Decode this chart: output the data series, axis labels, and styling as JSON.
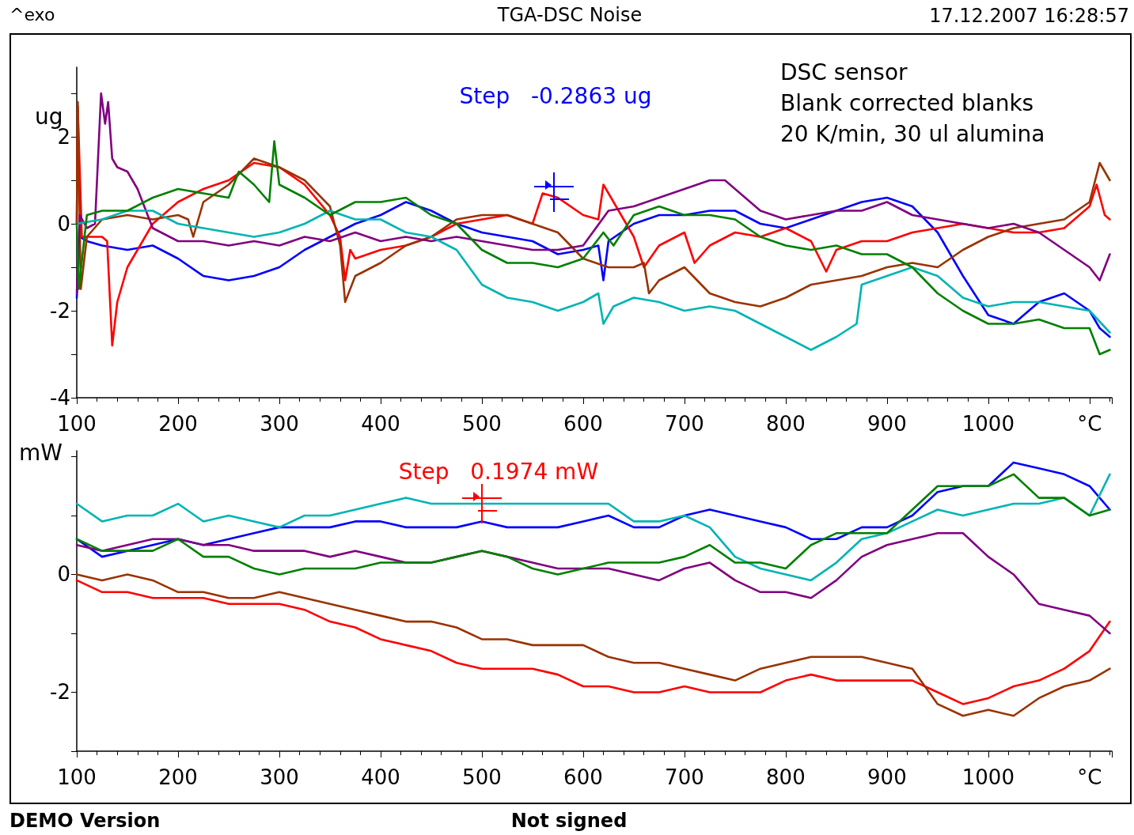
{
  "chart_data": [
    {
      "type": "line",
      "title": "TGA-DSC Noise",
      "ylabel": "ug",
      "annotations": [
        "^exo",
        "17.12.2007 16:28:57",
        "DSC sensor\nBlank corrected blanks\n20 K/min, 30 ul alumina",
        "Step   -0.2863 ug"
      ],
      "xlim": [
        100,
        1122
      ],
      "xticks": [
        100,
        200,
        300,
        400,
        500,
        600,
        700,
        800,
        900,
        1000,
        {
          "value": 1100,
          "label": "°C"
        }
      ],
      "ylim": [
        -4,
        3.6
      ],
      "yticks": [
        -4,
        {
          "value": -3,
          "label": null
        },
        -2,
        {
          "value": -1,
          "label": null
        },
        0,
        {
          "value": 1,
          "label": null
        },
        2,
        {
          "value": 3,
          "label": null
        }
      ],
      "series": [
        {
          "color": "#0000ff",
          "x": [
            100,
            103,
            110,
            125,
            150,
            175,
            200,
            225,
            250,
            275,
            300,
            325,
            350,
            375,
            400,
            425,
            450,
            475,
            500,
            525,
            550,
            575,
            600,
            615,
            620,
            625,
            650,
            675,
            700,
            725,
            750,
            775,
            800,
            825,
            850,
            875,
            900,
            925,
            950,
            975,
            1000,
            1025,
            1050,
            1075,
            1100,
            1110,
            1120
          ],
          "values": [
            -1.7,
            -0.3,
            -0.4,
            -0.5,
            -0.6,
            -0.5,
            -0.8,
            -1.2,
            -1.3,
            -1.2,
            -1.0,
            -0.6,
            -0.3,
            0.0,
            0.2,
            0.5,
            0.3,
            0.0,
            -0.2,
            -0.3,
            -0.4,
            -0.7,
            -0.6,
            -0.5,
            -1.3,
            -0.4,
            0.0,
            0.2,
            0.2,
            0.3,
            0.3,
            0.0,
            -0.1,
            0.1,
            0.3,
            0.5,
            0.6,
            0.4,
            -0.2,
            -1.2,
            -2.1,
            -2.3,
            -1.8,
            -1.6,
            -2.0,
            -2.4,
            -2.6
          ]
        },
        {
          "color": "#ff0000",
          "x": [
            100,
            101,
            105,
            110,
            125,
            130,
            135,
            140,
            150,
            175,
            200,
            225,
            250,
            275,
            300,
            325,
            350,
            360,
            365,
            370,
            375,
            400,
            425,
            450,
            475,
            500,
            525,
            550,
            560,
            575,
            600,
            615,
            620,
            630,
            650,
            660,
            675,
            700,
            710,
            725,
            750,
            775,
            800,
            825,
            840,
            850,
            875,
            900,
            925,
            950,
            975,
            1000,
            1025,
            1050,
            1075,
            1100,
            1107,
            1115,
            1120
          ],
          "values": [
            0.0,
            2.7,
            -0.3,
            -0.3,
            -0.3,
            -0.4,
            -2.8,
            -1.8,
            -1.0,
            0.0,
            0.5,
            0.8,
            1.0,
            1.4,
            1.3,
            0.9,
            0.2,
            -0.3,
            -1.3,
            -0.6,
            -0.8,
            -0.6,
            -0.5,
            -0.3,
            0.0,
            0.1,
            0.2,
            0.0,
            0.7,
            0.6,
            0.2,
            0.1,
            0.9,
            0.5,
            -0.3,
            -1.0,
            -0.5,
            -0.2,
            -0.9,
            -0.5,
            -0.2,
            -0.3,
            -0.1,
            -0.4,
            -1.1,
            -0.6,
            -0.4,
            -0.4,
            -0.2,
            -0.1,
            0.0,
            -0.1,
            -0.2,
            -0.2,
            -0.1,
            0.4,
            0.9,
            0.2,
            0.1
          ]
        },
        {
          "color": "#993300",
          "x": [
            100,
            101,
            104,
            110,
            125,
            150,
            175,
            200,
            210,
            215,
            225,
            250,
            275,
            300,
            325,
            350,
            360,
            365,
            375,
            400,
            425,
            450,
            475,
            500,
            525,
            550,
            575,
            600,
            625,
            650,
            660,
            665,
            675,
            700,
            725,
            750,
            775,
            800,
            825,
            850,
            875,
            900,
            925,
            950,
            975,
            1000,
            1025,
            1050,
            1075,
            1100,
            1110,
            1120
          ],
          "values": [
            0.0,
            2.8,
            -1.5,
            -0.3,
            0.1,
            0.2,
            0.1,
            0.2,
            0.1,
            -0.3,
            0.5,
            0.9,
            1.5,
            1.3,
            1.0,
            0.4,
            -0.5,
            -1.8,
            -1.2,
            -0.9,
            -0.5,
            -0.3,
            0.1,
            0.2,
            0.2,
            0.0,
            -0.2,
            -0.8,
            -1.0,
            -1.0,
            -0.9,
            -1.6,
            -1.3,
            -1.0,
            -1.6,
            -1.8,
            -1.9,
            -1.7,
            -1.4,
            -1.3,
            -1.2,
            -1.0,
            -0.9,
            -1.0,
            -0.6,
            -0.3,
            -0.1,
            0.0,
            0.1,
            0.5,
            1.4,
            1.0
          ]
        },
        {
          "color": "#800080",
          "x": [
            100,
            103,
            110,
            118,
            124,
            128,
            131,
            135,
            140,
            150,
            160,
            175,
            200,
            225,
            250,
            275,
            300,
            325,
            350,
            375,
            400,
            425,
            450,
            475,
            500,
            525,
            550,
            575,
            600,
            625,
            650,
            675,
            700,
            725,
            740,
            750,
            775,
            800,
            825,
            850,
            875,
            900,
            925,
            950,
            975,
            1000,
            1025,
            1050,
            1075,
            1100,
            1110,
            1120
          ],
          "values": [
            -1.6,
            0.2,
            -0.1,
            0.0,
            3.0,
            2.3,
            2.8,
            1.5,
            1.3,
            1.2,
            0.8,
            -0.1,
            -0.4,
            -0.4,
            -0.5,
            -0.4,
            -0.5,
            -0.3,
            -0.4,
            -0.2,
            -0.4,
            -0.3,
            -0.4,
            -0.3,
            -0.4,
            -0.5,
            -0.6,
            -0.6,
            -0.5,
            0.3,
            0.4,
            0.6,
            0.8,
            1.0,
            1.0,
            0.8,
            0.3,
            0.1,
            0.2,
            0.3,
            0.3,
            0.5,
            0.2,
            0.1,
            0.0,
            -0.1,
            0.0,
            -0.2,
            -0.6,
            -1.0,
            -1.3,
            -0.7
          ]
        },
        {
          "color": "#00b4b4",
          "x": [
            100,
            125,
            150,
            175,
            200,
            225,
            250,
            275,
            300,
            325,
            350,
            375,
            400,
            425,
            450,
            475,
            500,
            525,
            550,
            575,
            600,
            615,
            620,
            630,
            650,
            675,
            700,
            725,
            750,
            775,
            800,
            825,
            850,
            870,
            875,
            900,
            925,
            950,
            975,
            1000,
            1025,
            1050,
            1075,
            1100,
            1120
          ],
          "values": [
            0.0,
            0.1,
            0.3,
            0.3,
            0.0,
            -0.1,
            -0.2,
            -0.3,
            -0.2,
            0.0,
            0.3,
            0.1,
            0.1,
            -0.2,
            -0.3,
            -0.6,
            -1.4,
            -1.7,
            -1.8,
            -2.0,
            -1.8,
            -1.6,
            -2.3,
            -1.9,
            -1.7,
            -1.8,
            -2.0,
            -1.9,
            -2.0,
            -2.3,
            -2.6,
            -2.9,
            -2.6,
            -2.3,
            -1.4,
            -1.2,
            -1.0,
            -1.2,
            -1.7,
            -1.9,
            -1.8,
            -1.8,
            -1.9,
            -2.0,
            -2.5
          ]
        },
        {
          "color": "#008000",
          "x": [
            100,
            102,
            110,
            125,
            150,
            175,
            200,
            225,
            250,
            260,
            275,
            290,
            295,
            300,
            325,
            350,
            375,
            400,
            425,
            450,
            475,
            500,
            525,
            550,
            575,
            600,
            620,
            630,
            650,
            675,
            700,
            725,
            750,
            775,
            800,
            825,
            850,
            875,
            900,
            925,
            950,
            975,
            1000,
            1025,
            1050,
            1075,
            1100,
            1110,
            1120
          ],
          "values": [
            0.0,
            -1.5,
            0.2,
            0.3,
            0.3,
            0.6,
            0.8,
            0.7,
            0.6,
            1.2,
            0.9,
            0.5,
            1.9,
            0.9,
            0.6,
            0.2,
            0.5,
            0.5,
            0.6,
            0.2,
            0.0,
            -0.6,
            -0.9,
            -0.9,
            -1.0,
            -0.8,
            -0.2,
            -0.5,
            0.2,
            0.4,
            0.2,
            0.2,
            0.1,
            -0.3,
            -0.5,
            -0.6,
            -0.5,
            -0.7,
            -0.7,
            -1.0,
            -1.6,
            -2.0,
            -2.3,
            -2.3,
            -2.2,
            -2.4,
            -2.4,
            -3.0,
            -2.9
          ]
        }
      ]
    },
    {
      "type": "line",
      "ylabel": "mW",
      "annotations": [
        "DEMO Version",
        "Not signed",
        {
          "text": "Step   0.1974 mW",
          "x": 500,
          "y": 1.2
        }
      ],
      "x": [
        100,
        125,
        150,
        175,
        200,
        225,
        250,
        275,
        300,
        325,
        350,
        375,
        400,
        425,
        450,
        475,
        500,
        525,
        550,
        575,
        600,
        625,
        650,
        675,
        700,
        725,
        750,
        775,
        800,
        825,
        850,
        875,
        900,
        925,
        950,
        975,
        1000,
        1025,
        1050,
        1075,
        1100,
        1120
      ],
      "xlim": [
        100,
        1122
      ],
      "xticks": [
        100,
        200,
        300,
        400,
        500,
        600,
        700,
        800,
        900,
        1000,
        {
          "value": 1100,
          "label": "°C"
        }
      ],
      "ylim": [
        -3,
        2.1
      ],
      "yticks": [
        {
          "value": -3,
          "label": null
        },
        -2,
        {
          "value": -1,
          "label": null
        },
        0,
        {
          "value": 1,
          "label": null
        },
        {
          "value": 2,
          "label": null
        }
      ],
      "series": [
        {
          "color": "#ff0000",
          "values": [
            -0.1,
            -0.3,
            -0.3,
            -0.4,
            -0.4,
            -0.4,
            -0.5,
            -0.5,
            -0.5,
            -0.6,
            -0.8,
            -0.9,
            -1.1,
            -1.2,
            -1.3,
            -1.5,
            -1.6,
            -1.6,
            -1.6,
            -1.7,
            -1.9,
            -1.9,
            -2.0,
            -2.0,
            -1.9,
            -2.0,
            -2.0,
            -2.0,
            -1.8,
            -1.7,
            -1.8,
            -1.8,
            -1.8,
            -1.8,
            -2.0,
            -2.2,
            -2.1,
            -1.9,
            -1.8,
            -1.6,
            -1.3,
            -0.8
          ]
        },
        {
          "color": "#0000ff",
          "values": [
            0.6,
            0.3,
            0.4,
            0.5,
            0.6,
            0.5,
            0.6,
            0.7,
            0.8,
            0.8,
            0.8,
            0.9,
            0.9,
            0.8,
            0.8,
            0.8,
            0.9,
            0.8,
            0.8,
            0.8,
            0.9,
            1.0,
            0.8,
            0.8,
            1.0,
            1.1,
            1.0,
            0.9,
            0.8,
            0.6,
            0.6,
            0.8,
            0.8,
            1.0,
            1.4,
            1.5,
            1.5,
            1.9,
            1.8,
            1.7,
            1.5,
            1.1
          ]
        },
        {
          "color": "#993300",
          "values": [
            0.0,
            -0.1,
            0.0,
            -0.1,
            -0.3,
            -0.3,
            -0.4,
            -0.4,
            -0.3,
            -0.4,
            -0.5,
            -0.6,
            -0.7,
            -0.8,
            -0.8,
            -0.9,
            -1.1,
            -1.1,
            -1.2,
            -1.2,
            -1.2,
            -1.4,
            -1.5,
            -1.5,
            -1.6,
            -1.7,
            -1.8,
            -1.6,
            -1.5,
            -1.4,
            -1.4,
            -1.4,
            -1.5,
            -1.6,
            -2.2,
            -2.4,
            -2.3,
            -2.4,
            -2.1,
            -1.9,
            -1.8,
            -1.6
          ]
        },
        {
          "color": "#800080",
          "values": [
            0.5,
            0.4,
            0.5,
            0.6,
            0.6,
            0.5,
            0.5,
            0.4,
            0.4,
            0.4,
            0.3,
            0.4,
            0.3,
            0.2,
            0.2,
            0.3,
            0.4,
            0.3,
            0.2,
            0.1,
            0.1,
            0.1,
            0.0,
            -0.1,
            0.1,
            0.2,
            -0.1,
            -0.3,
            -0.3,
            -0.4,
            -0.1,
            0.3,
            0.5,
            0.6,
            0.7,
            0.7,
            0.3,
            0.0,
            -0.5,
            -0.6,
            -0.7,
            -1.0
          ]
        },
        {
          "color": "#00b4b4",
          "values": [
            1.2,
            0.9,
            1.0,
            1.0,
            1.2,
            0.9,
            1.0,
            0.9,
            0.8,
            1.0,
            1.0,
            1.1,
            1.2,
            1.3,
            1.2,
            1.2,
            1.2,
            1.2,
            1.2,
            1.2,
            1.2,
            1.2,
            0.9,
            0.9,
            1.0,
            0.8,
            0.3,
            0.1,
            0.0,
            -0.1,
            0.2,
            0.6,
            0.7,
            0.9,
            1.1,
            1.0,
            1.1,
            1.2,
            1.2,
            1.3,
            1.0,
            1.7
          ]
        },
        {
          "color": "#008000",
          "values": [
            0.6,
            0.4,
            0.4,
            0.4,
            0.6,
            0.3,
            0.3,
            0.1,
            0.0,
            0.1,
            0.1,
            0.1,
            0.2,
            0.2,
            0.2,
            0.3,
            0.4,
            0.3,
            0.1,
            0.0,
            0.1,
            0.2,
            0.2,
            0.2,
            0.3,
            0.5,
            0.2,
            0.2,
            0.1,
            0.5,
            0.7,
            0.7,
            0.7,
            1.1,
            1.5,
            1.5,
            1.5,
            1.7,
            1.3,
            1.3,
            1.0,
            1.1
          ]
        }
      ]
    }
  ]
}
